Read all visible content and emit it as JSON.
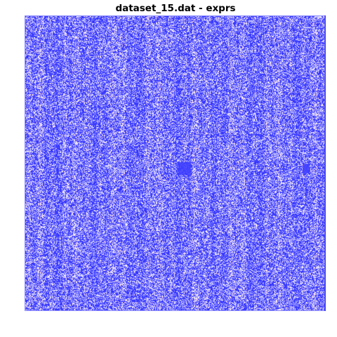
{
  "chart_data": {
    "type": "heatmap",
    "title": "dataset_15.dat - exprs",
    "xlabel": "",
    "ylabel": "",
    "colormap": {
      "low": "#3232ff",
      "mid": "#ffffff",
      "high": "#ff0000"
    },
    "grid": false,
    "legend": "none",
    "notes_visible": "dense randomized blue/white cell pattern with faint vertical banding"
  },
  "colors": {
    "dominant": "#3b3bff",
    "light": "#ffffff",
    "accent": "#ffb0b0"
  }
}
